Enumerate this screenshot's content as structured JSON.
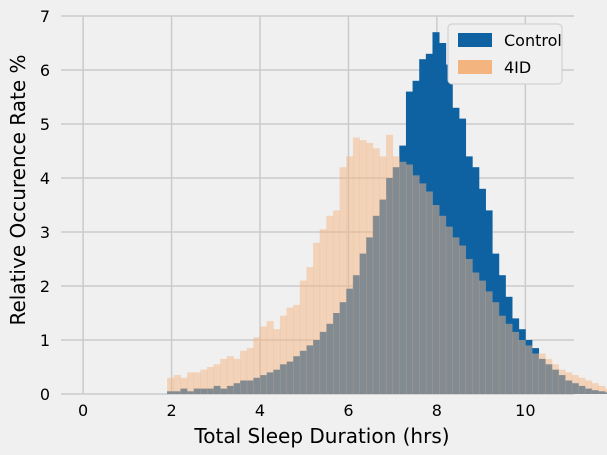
{
  "chart_data": {
    "type": "bar",
    "subtype": "overlaid-histogram",
    "title": "",
    "xlabel": "Total Sleep Duration (hrs)",
    "ylabel": "Relative Occurence Rate %",
    "xlim": [
      -0.5,
      11.1
    ],
    "ylim": [
      0,
      7
    ],
    "xticks": [
      0,
      2,
      4,
      6,
      8,
      10
    ],
    "yticks": [
      0,
      1,
      2,
      3,
      4,
      5,
      6,
      7
    ],
    "grid": true,
    "legend_position": "top-right",
    "bin_start": 1.9,
    "bin_width": 0.15,
    "series": [
      {
        "name": "Control",
        "color": "#0f62a2",
        "values": [
          0.05,
          0.05,
          0.1,
          0.05,
          0.1,
          0.1,
          0.1,
          0.15,
          0.1,
          0.15,
          0.2,
          0.25,
          0.25,
          0.3,
          0.35,
          0.4,
          0.45,
          0.55,
          0.6,
          0.7,
          0.8,
          0.9,
          1.0,
          1.15,
          1.3,
          1.5,
          1.7,
          1.95,
          2.2,
          2.6,
          2.9,
          3.3,
          3.6,
          4.0,
          4.2,
          4.6,
          5.6,
          5.8,
          6.2,
          6.3,
          6.7,
          6.5,
          6.1,
          5.3,
          5.1,
          4.4,
          4.2,
          3.8,
          3.4,
          2.6,
          2.2,
          1.8,
          1.4,
          1.2,
          1.0,
          0.85,
          0.65,
          0.55,
          0.45,
          0.35,
          0.25,
          0.2,
          0.15,
          0.1,
          0.07,
          0.05,
          0.03,
          0.02
        ]
      },
      {
        "name": "4ID",
        "color": "#f3b47f",
        "values": [
          0.3,
          0.35,
          0.3,
          0.4,
          0.4,
          0.45,
          0.5,
          0.55,
          0.65,
          0.7,
          0.65,
          0.8,
          0.85,
          1.05,
          1.25,
          1.35,
          1.2,
          1.45,
          1.6,
          1.65,
          2.1,
          2.35,
          2.8,
          3.05,
          3.3,
          3.4,
          4.2,
          4.4,
          4.75,
          4.7,
          4.65,
          4.55,
          4.4,
          4.8,
          4.4,
          4.3,
          4.25,
          4.05,
          3.9,
          3.75,
          3.5,
          3.3,
          3.1,
          2.9,
          2.75,
          2.5,
          2.25,
          2.1,
          1.9,
          1.7,
          1.45,
          1.3,
          1.15,
          1.0,
          0.9,
          0.75,
          0.75,
          0.65,
          0.55,
          0.45,
          0.4,
          0.35,
          0.3,
          0.25,
          0.2,
          0.15,
          0.1
        ]
      }
    ]
  }
}
